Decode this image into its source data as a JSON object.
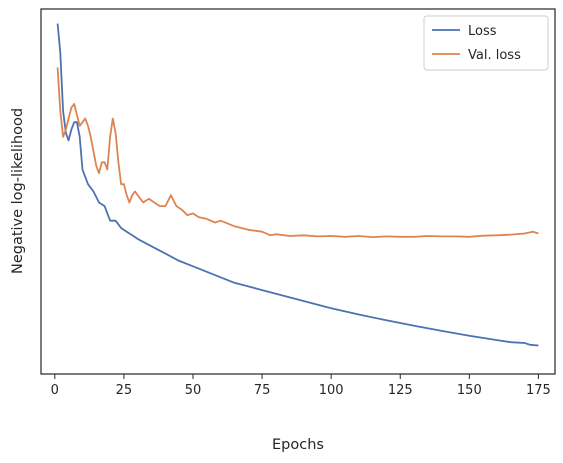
{
  "chart_data": {
    "type": "line",
    "title": "",
    "xlabel": "Epochs",
    "ylabel": "Negative log-likelihood",
    "xlim": [
      -5,
      181
    ],
    "ylim": [
      0,
      100
    ],
    "xticks": [
      0,
      25,
      50,
      75,
      100,
      125,
      150,
      175
    ],
    "yticks_shown": false,
    "grid": false,
    "legend_position": "top-right",
    "series": [
      {
        "name": "Loss",
        "color": "#4c72b0",
        "points": [
          [
            1,
            96
          ],
          [
            2,
            88
          ],
          [
            3,
            72
          ],
          [
            4,
            66
          ],
          [
            5,
            64
          ],
          [
            6,
            67
          ],
          [
            7,
            69
          ],
          [
            8,
            69
          ],
          [
            9,
            65
          ],
          [
            10,
            56
          ],
          [
            12,
            52
          ],
          [
            14,
            50
          ],
          [
            16,
            47
          ],
          [
            18,
            46
          ],
          [
            20,
            42
          ],
          [
            22,
            42
          ],
          [
            24,
            40
          ],
          [
            26,
            39
          ],
          [
            28,
            38
          ],
          [
            30,
            37
          ],
          [
            35,
            35
          ],
          [
            40,
            33
          ],
          [
            45,
            31
          ],
          [
            50,
            29.5
          ],
          [
            55,
            28
          ],
          [
            60,
            26.5
          ],
          [
            65,
            25
          ],
          [
            70,
            24
          ],
          [
            75,
            23
          ],
          [
            80,
            22
          ],
          [
            85,
            21
          ],
          [
            90,
            20
          ],
          [
            95,
            19
          ],
          [
            100,
            18
          ],
          [
            110,
            16.3
          ],
          [
            120,
            14.7
          ],
          [
            130,
            13.2
          ],
          [
            140,
            11.8
          ],
          [
            150,
            10.5
          ],
          [
            160,
            9.3
          ],
          [
            165,
            8.7
          ],
          [
            170,
            8.5
          ],
          [
            172,
            8
          ],
          [
            175,
            7.8
          ]
        ]
      },
      {
        "name": "Val. loss",
        "color": "#dd8452",
        "points": [
          [
            1,
            84
          ],
          [
            2,
            72
          ],
          [
            3,
            65
          ],
          [
            4,
            67
          ],
          [
            5,
            70
          ],
          [
            6,
            73
          ],
          [
            7,
            74
          ],
          [
            8,
            71
          ],
          [
            9,
            68
          ],
          [
            10,
            69
          ],
          [
            11,
            70
          ],
          [
            12,
            68
          ],
          [
            13,
            65
          ],
          [
            14,
            61
          ],
          [
            15,
            57
          ],
          [
            16,
            55
          ],
          [
            17,
            58
          ],
          [
            18,
            58
          ],
          [
            19,
            56
          ],
          [
            20,
            65
          ],
          [
            21,
            70
          ],
          [
            22,
            66
          ],
          [
            23,
            58
          ],
          [
            24,
            52
          ],
          [
            25,
            52
          ],
          [
            26,
            49
          ],
          [
            27,
            47
          ],
          [
            28,
            49
          ],
          [
            29,
            50
          ],
          [
            30,
            49
          ],
          [
            32,
            47
          ],
          [
            34,
            48
          ],
          [
            36,
            47
          ],
          [
            38,
            46
          ],
          [
            40,
            46
          ],
          [
            42,
            49
          ],
          [
            44,
            46
          ],
          [
            46,
            45
          ],
          [
            48,
            43.5
          ],
          [
            50,
            44
          ],
          [
            52,
            43
          ],
          [
            55,
            42.5
          ],
          [
            58,
            41.5
          ],
          [
            60,
            42
          ],
          [
            65,
            40.5
          ],
          [
            70,
            39.5
          ],
          [
            75,
            39
          ],
          [
            78,
            38
          ],
          [
            80,
            38.3
          ],
          [
            85,
            37.8
          ],
          [
            90,
            38
          ],
          [
            95,
            37.7
          ],
          [
            100,
            37.8
          ],
          [
            105,
            37.6
          ],
          [
            110,
            37.8
          ],
          [
            115,
            37.5
          ],
          [
            120,
            37.7
          ],
          [
            125,
            37.6
          ],
          [
            130,
            37.6
          ],
          [
            135,
            37.8
          ],
          [
            140,
            37.7
          ],
          [
            145,
            37.7
          ],
          [
            150,
            37.6
          ],
          [
            155,
            37.9
          ],
          [
            160,
            38
          ],
          [
            165,
            38.2
          ],
          [
            170,
            38.5
          ],
          [
            173,
            39
          ],
          [
            175,
            38.5
          ]
        ]
      }
    ]
  }
}
